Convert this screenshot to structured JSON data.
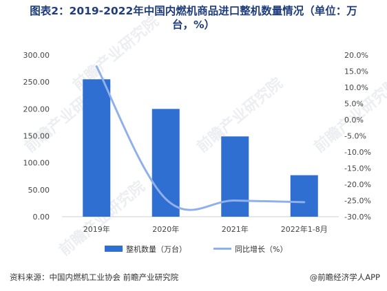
{
  "title_line1": "图表2：2019-2022年中国内燃机商品进口整机数量情况（单位：万",
  "title_line2": "台，%）",
  "source": "资料来源：中国内燃机工业协会 前瞻产业研究院",
  "brand": "@前瞻经济学人APP",
  "watermark_text": "前瞻产业研究院",
  "colors": {
    "bar": "#2e6fd1",
    "line": "#8fb0ea",
    "title": "#1f3d7a"
  },
  "chart_data": {
    "type": "bar",
    "categories": [
      "2019年",
      "2020年",
      "2021年",
      "2022年1-8月"
    ],
    "series": [
      {
        "name": "整机数量（万台）",
        "type": "bar",
        "axis": "left",
        "values": [
          255,
          200,
          149,
          77
        ]
      },
      {
        "name": "同比增长（%）",
        "type": "line",
        "axis": "right",
        "values": [
          16.5,
          -24.5,
          -25.0,
          -25.5
        ]
      }
    ],
    "y_left": {
      "min": 0,
      "max": 300,
      "step": 50,
      "ticks": [
        "0.00",
        "50.00",
        "100.00",
        "150.00",
        "200.00",
        "250.00",
        "300.00"
      ]
    },
    "y_right": {
      "min": -30,
      "max": 20,
      "step": 5,
      "ticks": [
        "-30.0%",
        "-25.0%",
        "-20.0%",
        "-15.0%",
        "-10.0%",
        "-5.0%",
        "0.0%",
        "5.0%",
        "10.0%",
        "15.0%",
        "20.0%"
      ]
    },
    "legend_position": "bottom-center",
    "grid": false
  }
}
